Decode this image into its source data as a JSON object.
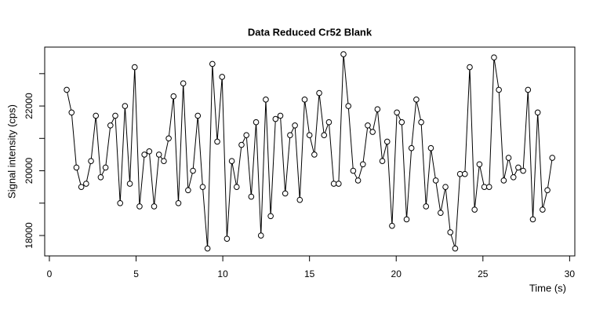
{
  "chart_data": {
    "type": "line",
    "title": "Data Reduced Cr52 Blank",
    "xlabel": "Time (s)",
    "ylabel": "Signal intensity (cps)",
    "x": [
      1.0,
      1.28,
      1.56,
      1.84,
      2.12,
      2.4,
      2.68,
      2.96,
      3.24,
      3.52,
      3.8,
      4.08,
      4.36,
      4.64,
      4.92,
      5.2,
      5.48,
      5.76,
      6.04,
      6.32,
      6.6,
      6.88,
      7.16,
      7.44,
      7.72,
      8.0,
      8.28,
      8.56,
      8.84,
      9.12,
      9.4,
      9.68,
      9.96,
      10.24,
      10.52,
      10.8,
      11.08,
      11.36,
      11.64,
      11.92,
      12.2,
      12.48,
      12.76,
      13.04,
      13.32,
      13.6,
      13.88,
      14.16,
      14.44,
      14.72,
      15.0,
      15.28,
      15.56,
      15.84,
      16.12,
      16.4,
      16.68,
      16.96,
      17.24,
      17.52,
      17.8,
      18.08,
      18.36,
      18.64,
      18.92,
      19.2,
      19.48,
      19.76,
      20.04,
      20.32,
      20.6,
      20.88,
      21.16,
      21.44,
      21.72,
      22.0,
      22.28,
      22.56,
      22.84,
      23.12,
      23.4,
      23.68,
      23.96,
      24.24,
      24.52,
      24.8,
      25.08,
      25.36,
      25.64,
      25.92,
      26.2,
      26.48,
      26.76,
      27.04,
      27.32,
      27.6,
      27.88,
      28.16,
      28.44,
      28.72,
      29.0
    ],
    "series": [
      {
        "color": "#000000",
        "values": [
          22500,
          21800,
          20100,
          19500,
          19600,
          20300,
          21700,
          19800,
          20100,
          21400,
          21700,
          19000,
          22000,
          19600,
          23200,
          18900,
          20500,
          20600,
          18900,
          20500,
          20300,
          21000,
          22300,
          19000,
          22700,
          19400,
          20000,
          21700,
          19500,
          17600,
          23300,
          20900,
          22900,
          17900,
          20300,
          19500,
          20800,
          21100,
          19200,
          21500,
          18000,
          22200,
          18600,
          21600,
          21700,
          19300,
          21100,
          21400,
          19100,
          22200,
          21100,
          20500,
          22400,
          21100,
          21500,
          19600,
          19600,
          23600,
          22000,
          20000,
          19700,
          20200,
          21400,
          21200,
          21900,
          20300,
          20900,
          18300,
          21800,
          21500,
          18500,
          20700,
          22200,
          21500,
          18900,
          20700,
          19700,
          18700,
          19500,
          18100,
          17600,
          19900,
          19900,
          23200,
          18800,
          20200,
          19500,
          19500,
          23500,
          22500,
          19700,
          20400,
          19800,
          20100,
          20000,
          22500,
          18500,
          21800,
          18800,
          19400,
          20400
        ]
      }
    ],
    "xlim": [
      -0.27,
      30.3
    ],
    "ylim": [
      17370,
      23820
    ],
    "xticks": [
      0,
      5,
      10,
      15,
      20,
      25,
      30
    ],
    "yticks": [
      18000,
      20000,
      22000
    ],
    "yticks_minor": [
      19000,
      21000,
      23000
    ]
  }
}
